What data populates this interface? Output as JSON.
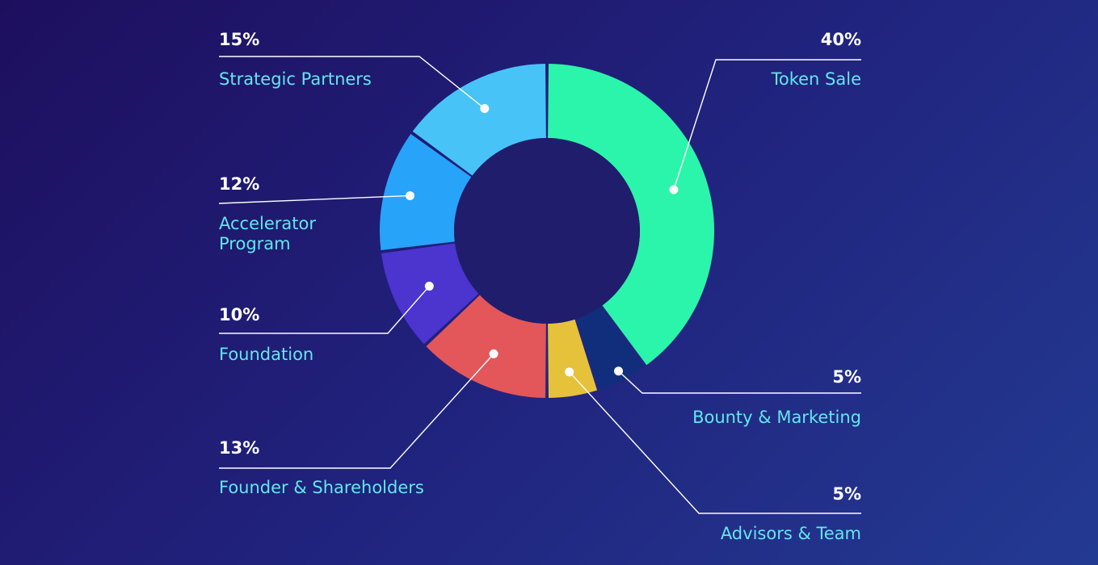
{
  "chart_data": {
    "type": "pie",
    "style": "donut",
    "title": "",
    "legend": "callout labels around donut",
    "slices": [
      {
        "label": "Token Sale",
        "value": 40,
        "display": "40%",
        "color": "#2bf5aa"
      },
      {
        "label": "Bounty & Marketing",
        "value": 5,
        "display": "5%",
        "color": "#102e7c"
      },
      {
        "label": "Advisors & Team",
        "value": 5,
        "display": "5%",
        "color": "#e5c23a"
      },
      {
        "label": "Founder & Shareholders",
        "value": 13,
        "display": "13%",
        "color": "#e3565a"
      },
      {
        "label": "Foundation",
        "value": 10,
        "display": "10%",
        "color": "#4c34cf"
      },
      {
        "label": "Accelerator Program",
        "lines": [
          "Accelerator",
          "Program"
        ],
        "value": 12,
        "display": "12%",
        "color": "#27a3fa"
      },
      {
        "label": "Strategic Partners",
        "value": 15,
        "display": "15%",
        "color": "#47c3f8"
      }
    ]
  }
}
